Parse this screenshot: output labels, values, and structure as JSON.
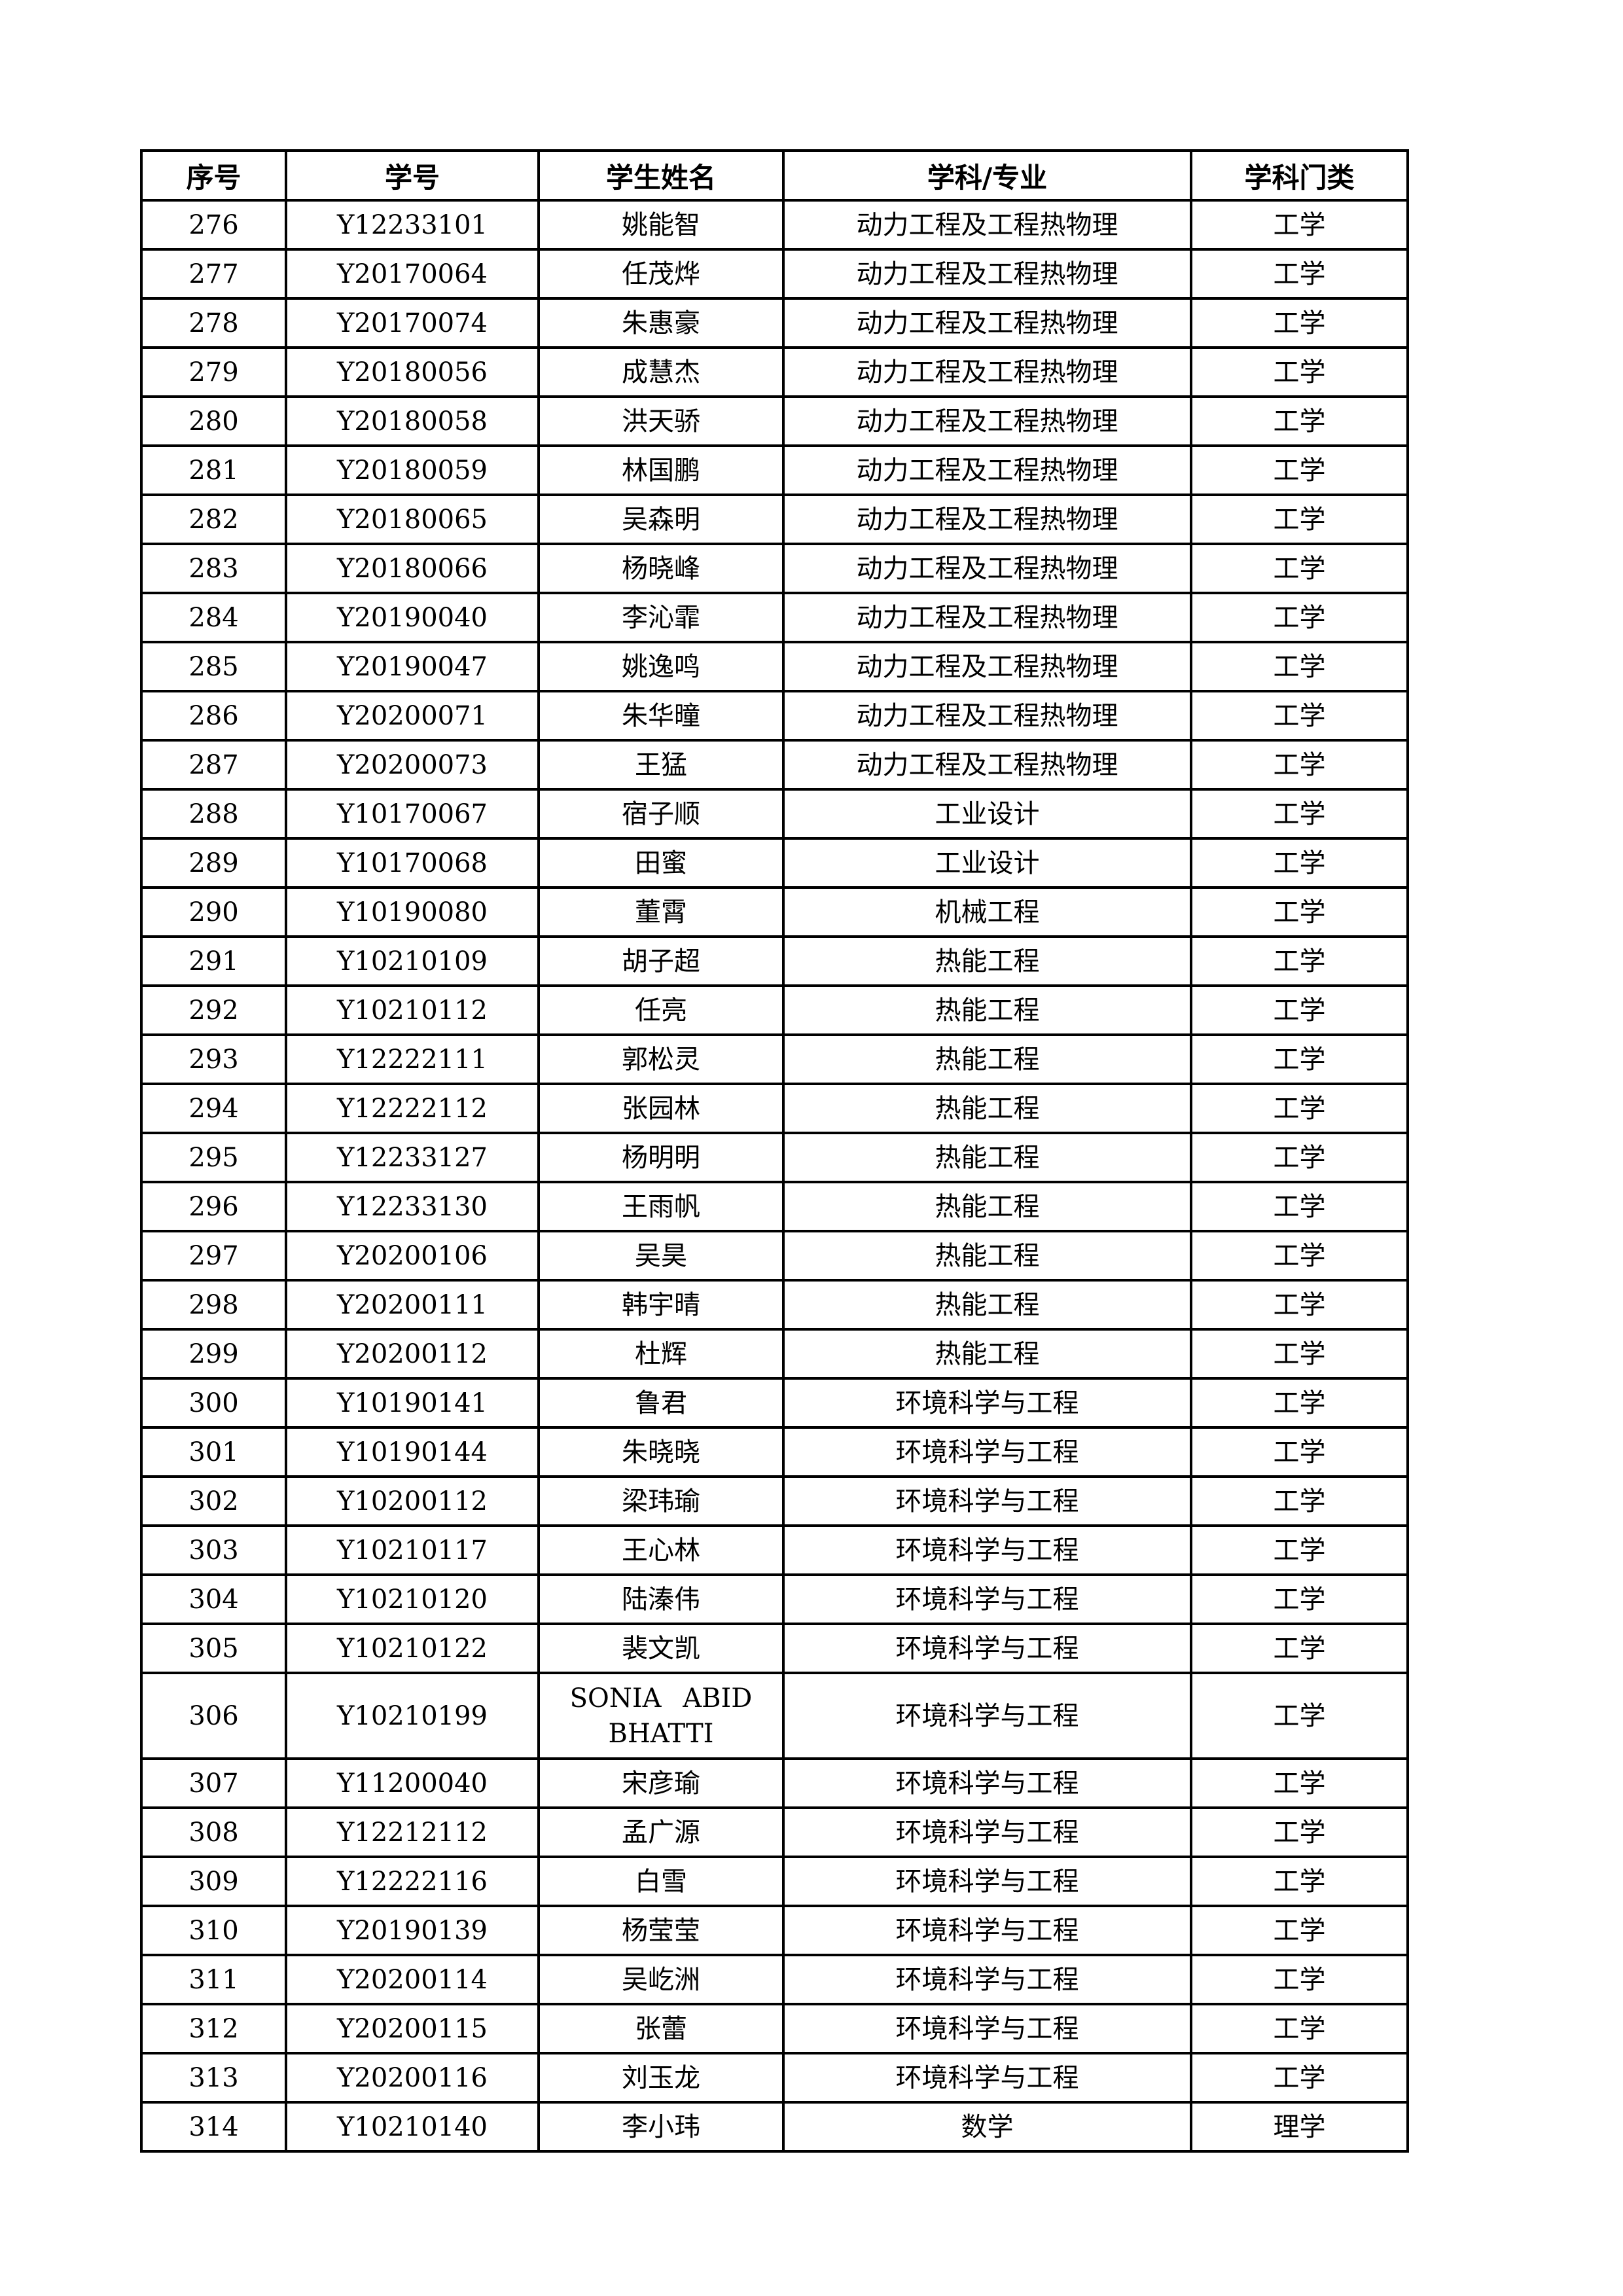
{
  "table": {
    "headers": [
      "序号",
      "学号",
      "学生姓名",
      "学科/专业",
      "学科门类"
    ],
    "rows": [
      [
        "276",
        "Y12233101",
        "姚能智",
        "动力工程及工程热物理",
        "工学"
      ],
      [
        "277",
        "Y20170064",
        "任茂烨",
        "动力工程及工程热物理",
        "工学"
      ],
      [
        "278",
        "Y20170074",
        "朱惠豪",
        "动力工程及工程热物理",
        "工学"
      ],
      [
        "279",
        "Y20180056",
        "成慧杰",
        "动力工程及工程热物理",
        "工学"
      ],
      [
        "280",
        "Y20180058",
        "洪天骄",
        "动力工程及工程热物理",
        "工学"
      ],
      [
        "281",
        "Y20180059",
        "林国鹏",
        "动力工程及工程热物理",
        "工学"
      ],
      [
        "282",
        "Y20180065",
        "吴森明",
        "动力工程及工程热物理",
        "工学"
      ],
      [
        "283",
        "Y20180066",
        "杨晓峰",
        "动力工程及工程热物理",
        "工学"
      ],
      [
        "284",
        "Y20190040",
        "李沁霏",
        "动力工程及工程热物理",
        "工学"
      ],
      [
        "285",
        "Y20190047",
        "姚逸鸣",
        "动力工程及工程热物理",
        "工学"
      ],
      [
        "286",
        "Y20200071",
        "朱华曈",
        "动力工程及工程热物理",
        "工学"
      ],
      [
        "287",
        "Y20200073",
        "王猛",
        "动力工程及工程热物理",
        "工学"
      ],
      [
        "288",
        "Y10170067",
        "宿子顺",
        "工业设计",
        "工学"
      ],
      [
        "289",
        "Y10170068",
        "田蜜",
        "工业设计",
        "工学"
      ],
      [
        "290",
        "Y10190080",
        "董霄",
        "机械工程",
        "工学"
      ],
      [
        "291",
        "Y10210109",
        "胡子超",
        "热能工程",
        "工学"
      ],
      [
        "292",
        "Y10210112",
        "任亮",
        "热能工程",
        "工学"
      ],
      [
        "293",
        "Y12222111",
        "郭松灵",
        "热能工程",
        "工学"
      ],
      [
        "294",
        "Y12222112",
        "张园林",
        "热能工程",
        "工学"
      ],
      [
        "295",
        "Y12233127",
        "杨明明",
        "热能工程",
        "工学"
      ],
      [
        "296",
        "Y12233130",
        "王雨帆",
        "热能工程",
        "工学"
      ],
      [
        "297",
        "Y20200106",
        "吴昊",
        "热能工程",
        "工学"
      ],
      [
        "298",
        "Y20200111",
        "韩宇晴",
        "热能工程",
        "工学"
      ],
      [
        "299",
        "Y20200112",
        "杜辉",
        "热能工程",
        "工学"
      ],
      [
        "300",
        "Y10190141",
        "鲁君",
        "环境科学与工程",
        "工学"
      ],
      [
        "301",
        "Y10190144",
        "朱晓晓",
        "环境科学与工程",
        "工学"
      ],
      [
        "302",
        "Y10200112",
        "梁玮瑜",
        "环境科学与工程",
        "工学"
      ],
      [
        "303",
        "Y10210117",
        "王心林",
        "环境科学与工程",
        "工学"
      ],
      [
        "304",
        "Y10210120",
        "陆溱伟",
        "环境科学与工程",
        "工学"
      ],
      [
        "305",
        "Y10210122",
        "裴文凯",
        "环境科学与工程",
        "工学"
      ],
      [
        "306",
        "Y10210199",
        "SONIA ABID BHATTI",
        "环境科学与工程",
        "工学"
      ],
      [
        "307",
        "Y11200040",
        "宋彦瑜",
        "环境科学与工程",
        "工学"
      ],
      [
        "308",
        "Y12212112",
        "孟广源",
        "环境科学与工程",
        "工学"
      ],
      [
        "309",
        "Y12222116",
        "白雪",
        "环境科学与工程",
        "工学"
      ],
      [
        "310",
        "Y20190139",
        "杨莹莹",
        "环境科学与工程",
        "工学"
      ],
      [
        "311",
        "Y20200114",
        "吴屹洲",
        "环境科学与工程",
        "工学"
      ],
      [
        "312",
        "Y20200115",
        "张蕾",
        "环境科学与工程",
        "工学"
      ],
      [
        "313",
        "Y20200116",
        "刘玉龙",
        "环境科学与工程",
        "工学"
      ],
      [
        "314",
        "Y10210140",
        "李小玮",
        "数学",
        "理学"
      ]
    ]
  }
}
